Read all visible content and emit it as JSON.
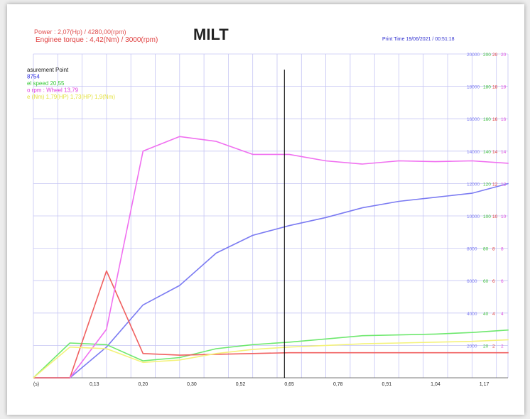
{
  "header": {
    "power_line": "Power : 2,07(Hp) / 4280,00(rpm)",
    "torque_line": "Enginee torque : 4,42(Nm) / 3000(rpm)",
    "title": "MILT",
    "print_time": "Print Time   19/06/2021  /  00:51:18"
  },
  "legend": {
    "line1": "asurement Point",
    "line2": "8754",
    "line3": "el speed  20,55",
    "line4": "o rpm : Wheel  13,79",
    "line5": "e (Nm)  1,79(HP) 1,73(HP) 1,9(Nm)"
  },
  "colors": {
    "blue": "#7b7bf2",
    "green": "#6ee86e",
    "red": "#f06060",
    "magenta": "#f070f0",
    "yellow": "#f4f27a",
    "grid": "#c6c6f4",
    "cursor": "#000000"
  },
  "chart_data": {
    "type": "line",
    "x_tick_labels": [
      "(s)",
      "0,13",
      "0,20",
      "0,30",
      "0,52",
      "0,65",
      "0,78",
      "0,91",
      "1,04",
      "1,17"
    ],
    "x_index": [
      0,
      1,
      2,
      3,
      4,
      5,
      6,
      7,
      8,
      9,
      10,
      11,
      12,
      13,
      14,
      15,
      16,
      17,
      18,
      19
    ],
    "ylim": [
      0,
      20000
    ],
    "y_ticks": [
      2000,
      4000,
      6000,
      8000,
      10000,
      12000,
      14000,
      16000,
      18000,
      20000
    ],
    "right_scale_labels": [
      {
        "blue": "2000",
        "green": "20",
        "red": "2",
        "magenta": "2"
      },
      {
        "blue": "4000",
        "green": "40",
        "red": "4",
        "magenta": "4"
      },
      {
        "blue": "6000",
        "green": "60",
        "red": "6",
        "magenta": "6"
      },
      {
        "blue": "8000",
        "green": "80",
        "red": "8",
        "magenta": "8"
      },
      {
        "blue": "10000",
        "green": "100",
        "red": "10",
        "magenta": "10"
      },
      {
        "blue": "12000",
        "green": "120",
        "red": "12",
        "magenta": "12"
      },
      {
        "blue": "14000",
        "green": "140",
        "red": "14",
        "magenta": "14"
      },
      {
        "blue": "16000",
        "green": "160",
        "red": "16",
        "magenta": "16"
      },
      {
        "blue": "18000",
        "green": "180",
        "red": "18",
        "magenta": "18"
      },
      {
        "blue": "20000",
        "green": "200",
        "red": "20",
        "magenta": "20"
      }
    ],
    "series": [
      {
        "color": "blue",
        "points": [
          [
            0,
            0
          ],
          [
            1.5,
            0
          ],
          [
            3,
            1900
          ],
          [
            4.5,
            4500
          ],
          [
            6,
            5700
          ],
          [
            7.5,
            7700
          ],
          [
            9,
            8800
          ],
          [
            10.5,
            9400
          ],
          [
            12,
            9900
          ],
          [
            13.5,
            10500
          ],
          [
            15,
            10900
          ],
          [
            16.5,
            11150
          ],
          [
            18,
            11400
          ],
          [
            19.5,
            12000
          ]
        ]
      },
      {
        "color": "green",
        "points": [
          [
            0,
            0
          ],
          [
            1.5,
            2150
          ],
          [
            3,
            2050
          ],
          [
            4.5,
            1050
          ],
          [
            6,
            1250
          ],
          [
            7.5,
            1800
          ],
          [
            9,
            2050
          ],
          [
            10.5,
            2200
          ],
          [
            12,
            2400
          ],
          [
            13.5,
            2600
          ],
          [
            15,
            2650
          ],
          [
            16.5,
            2700
          ],
          [
            18,
            2800
          ],
          [
            19.5,
            2950
          ]
        ]
      },
      {
        "color": "red",
        "points": [
          [
            0,
            0
          ],
          [
            1.5,
            0
          ],
          [
            3,
            6600
          ],
          [
            4.5,
            1500
          ],
          [
            6,
            1400
          ],
          [
            7.5,
            1450
          ],
          [
            9,
            1500
          ],
          [
            10.5,
            1550
          ],
          [
            12,
            1550
          ],
          [
            13.5,
            1550
          ],
          [
            15,
            1550
          ],
          [
            16.5,
            1550
          ],
          [
            18,
            1550
          ],
          [
            19.5,
            1550
          ]
        ]
      },
      {
        "color": "magenta",
        "points": [
          [
            1.5,
            0
          ],
          [
            3,
            3000
          ],
          [
            4.5,
            14000
          ],
          [
            6,
            14900
          ],
          [
            7.5,
            14600
          ],
          [
            9,
            13800
          ],
          [
            10.5,
            13800
          ],
          [
            12,
            13400
          ],
          [
            13.5,
            13200
          ],
          [
            15,
            13400
          ],
          [
            16.5,
            13350
          ],
          [
            18,
            13400
          ],
          [
            19.5,
            13250
          ]
        ]
      },
      {
        "color": "yellow",
        "points": [
          [
            0,
            0
          ],
          [
            1.5,
            1900
          ],
          [
            3,
            1800
          ],
          [
            4.5,
            950
          ],
          [
            6,
            1100
          ],
          [
            7.5,
            1500
          ],
          [
            9,
            1750
          ],
          [
            10.5,
            1900
          ],
          [
            12,
            2000
          ],
          [
            13.5,
            2100
          ],
          [
            15,
            2150
          ],
          [
            16.5,
            2200
          ],
          [
            18,
            2250
          ],
          [
            19.5,
            2350
          ]
        ]
      }
    ],
    "cursor_x": 10.3
  }
}
